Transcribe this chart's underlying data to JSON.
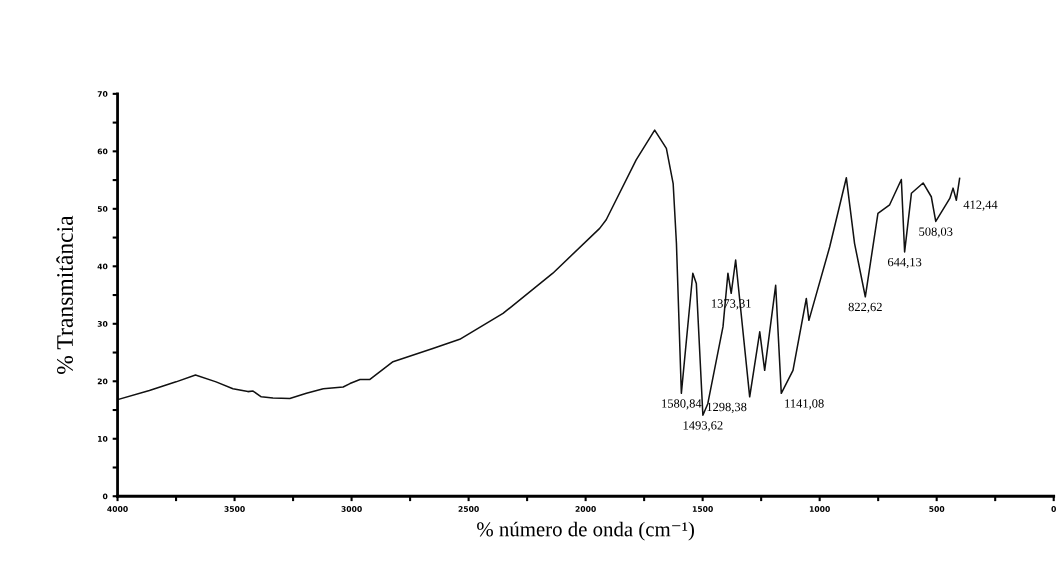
{
  "chart_data": {
    "type": "line",
    "xlabel": "% número de onda (cm⁻¹)",
    "ylabel": "% Transmitância",
    "xlim": [
      4000,
      0
    ],
    "ylim": [
      0,
      70
    ],
    "xticks": [
      4000,
      {
        "value": 3750,
        "label": null
      },
      3500,
      {
        "value": 3250,
        "label": null
      },
      3000,
      {
        "value": 2750,
        "label": null
      },
      2500,
      {
        "value": 2250,
        "label": null
      },
      2000,
      {
        "value": 1750,
        "label": null
      },
      1500,
      {
        "value": 1250,
        "label": null
      },
      1000,
      {
        "value": 750,
        "label": null
      },
      500,
      {
        "value": 250,
        "label": null
      },
      0
    ],
    "yticks": [
      0,
      {
        "value": 5,
        "label": null
      },
      10,
      {
        "value": 15,
        "label": null
      },
      20,
      {
        "value": 25,
        "label": null
      },
      30,
      {
        "value": 35,
        "label": null
      },
      40,
      {
        "value": 45,
        "label": null
      },
      50,
      {
        "value": 55,
        "label": null
      },
      60,
      {
        "value": 65,
        "label": null
      },
      70
    ],
    "grid": false,
    "marker": "none",
    "line_style": "solid",
    "series": [
      {
        "color": "#111111",
        "x": [
          4000,
          3864,
          3750,
          3667,
          3579,
          3507,
          3443,
          3421,
          3386,
          3336,
          3264,
          3193,
          3121,
          3036,
          3007,
          2964,
          2923,
          2823,
          2653,
          2538,
          2353,
          2140,
          1940,
          1912,
          1784,
          1705,
          1655,
          1626,
          1612,
          1591,
          1542,
          1527,
          1499,
          1478,
          1413,
          1392,
          1378,
          1359,
          1299,
          1256,
          1235,
          1188,
          1164,
          1114,
          1057,
          1046,
          957,
          886,
          851,
          805,
          751,
          701,
          651,
          637,
          608,
          558,
          523,
          504,
          444,
          430,
          416,
          402
        ],
        "values": [
          16.8,
          18.4,
          19.9,
          21.1,
          19.9,
          18.7,
          18.2,
          18.3,
          17.3,
          17.1,
          17.0,
          17.9,
          18.7,
          19.0,
          19.6,
          20.3,
          20.3,
          23.4,
          25.7,
          27.3,
          31.8,
          38.8,
          46.6,
          48.1,
          58.5,
          63.7,
          60.5,
          54.4,
          44.0,
          17.9,
          38.8,
          37.0,
          14.1,
          16.1,
          29.5,
          38.8,
          35.3,
          41.1,
          17.3,
          28.6,
          21.9,
          36.7,
          17.9,
          21.9,
          34.4,
          30.6,
          43.4,
          55.4,
          44.0,
          34.7,
          49.2,
          50.7,
          55.1,
          42.5,
          52.7,
          54.5,
          52.1,
          47.8,
          51.8,
          53.6,
          51.5,
          55.3
        ]
      }
    ],
    "annotations": [
      {
        "text": "1580,84",
        "x": 1591,
        "y": 17.9
      },
      {
        "text": "1493,62",
        "x": 1499,
        "y": 14.1
      },
      {
        "text": "1373,31",
        "x": 1378,
        "y": 35.3
      },
      {
        "text": "1298,38",
        "x": 1299,
        "y": 17.3
      },
      {
        "text": "1141,08",
        "x": 1164,
        "y": 17.9
      },
      {
        "text": "822,62",
        "x": 805,
        "y": 34.7
      },
      {
        "text": "644,13",
        "x": 637,
        "y": 42.5
      },
      {
        "text": "508,03",
        "x": 504,
        "y": 47.8
      },
      {
        "text": "412,44",
        "x": 416,
        "y": 51.5
      }
    ]
  }
}
